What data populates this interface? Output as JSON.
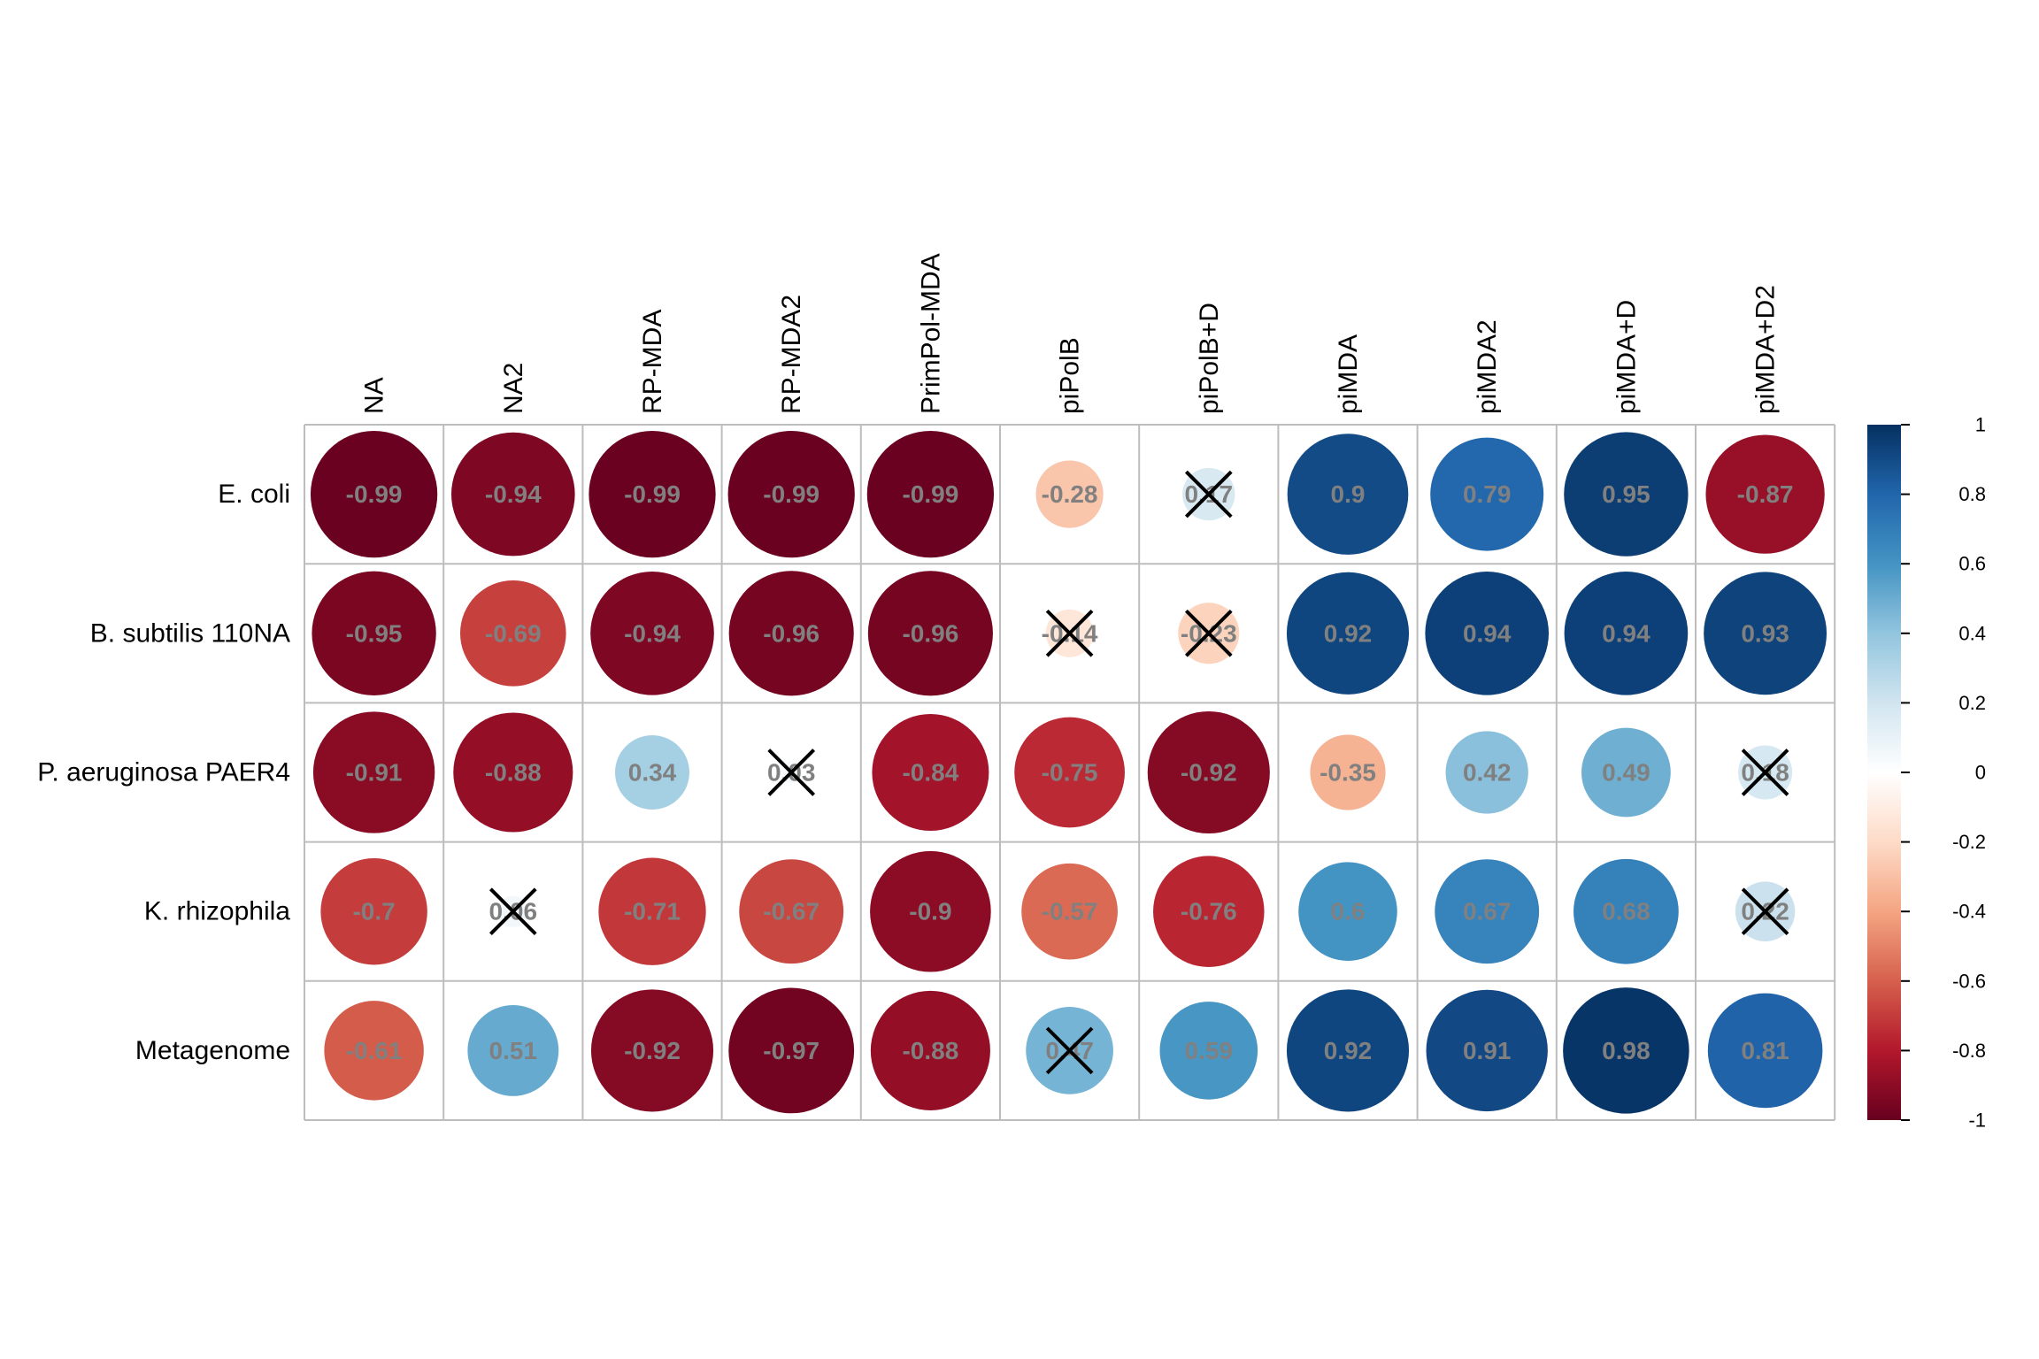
{
  "chart_data": {
    "type": "heatmap",
    "style": "circle correlation matrix",
    "rows": [
      "E. coli",
      "B. subtilis 110NA",
      "P. aeruginosa PAER4",
      "K. rhizophila",
      "Metagenome"
    ],
    "columns": [
      "NA",
      "NA2",
      "RP-MDA",
      "RP-MDA2",
      "PrimPol-MDA",
      "piPolB",
      "piPolB+D",
      "piMDA",
      "piMDA2",
      "piMDA+D",
      "piMDA+D2"
    ],
    "values": [
      [
        -0.99,
        -0.94,
        -0.99,
        -0.99,
        -0.99,
        -0.28,
        0.17,
        0.9,
        0.79,
        0.95,
        -0.87
      ],
      [
        -0.95,
        -0.69,
        -0.94,
        -0.96,
        -0.96,
        -0.14,
        -0.23,
        0.92,
        0.94,
        0.94,
        0.93
      ],
      [
        -0.91,
        -0.88,
        0.34,
        0.03,
        -0.84,
        -0.75,
        -0.92,
        -0.35,
        0.42,
        0.49,
        0.18
      ],
      [
        -0.7,
        0.06,
        -0.71,
        -0.67,
        -0.9,
        -0.57,
        -0.76,
        0.6,
        0.67,
        0.68,
        0.22
      ],
      [
        -0.61,
        0.51,
        -0.92,
        -0.97,
        -0.88,
        0.47,
        0.59,
        0.92,
        0.91,
        0.98,
        0.81
      ]
    ],
    "value_labels": [
      [
        "-0.99",
        "-0.94",
        "-0.99",
        "-0.99",
        "-0.99",
        "-0.28",
        "0.17",
        "0.9",
        "0.79",
        "0.95",
        "-0.87"
      ],
      [
        "-0.95",
        "-0.69",
        "-0.94",
        "-0.96",
        "-0.96",
        "-0.14",
        "-0.23",
        "0.92",
        "0.94",
        "0.94",
        "0.93"
      ],
      [
        "-0.91",
        "-0.88",
        "0.34",
        "0.03",
        "-0.84",
        "-0.75",
        "-0.92",
        "-0.35",
        "0.42",
        "0.49",
        "0.18"
      ],
      [
        "-0.7",
        "0.06",
        "-0.71",
        "-0.67",
        "-0.9",
        "-0.57",
        "-0.76",
        "0.6",
        "0.67",
        "0.68",
        "0.22"
      ],
      [
        "-0.61",
        "0.51",
        "-0.92",
        "-0.97",
        "-0.88",
        "0.47",
        "0.59",
        "0.92",
        "0.91",
        "0.98",
        "0.81"
      ]
    ],
    "not_significant": [
      [
        0,
        6
      ],
      [
        1,
        5
      ],
      [
        1,
        6
      ],
      [
        2,
        3
      ],
      [
        2,
        10
      ],
      [
        3,
        1
      ],
      [
        3,
        10
      ],
      [
        4,
        5
      ]
    ],
    "color_scale": {
      "range": [
        -1,
        1
      ],
      "stops": [
        "#67001F",
        "#B2182B",
        "#D6604D",
        "#F4A582",
        "#FDDBC7",
        "#FFFFFF",
        "#D1E5F0",
        "#92C5DE",
        "#4393C3",
        "#2166AC",
        "#053061"
      ],
      "ticks": [
        "1",
        "0.8",
        "0.6",
        "0.4",
        "0.2",
        "0",
        "-0.2",
        "-0.4",
        "-0.6",
        "-0.8",
        "-1"
      ],
      "legend_position": "right"
    },
    "grid": true
  }
}
